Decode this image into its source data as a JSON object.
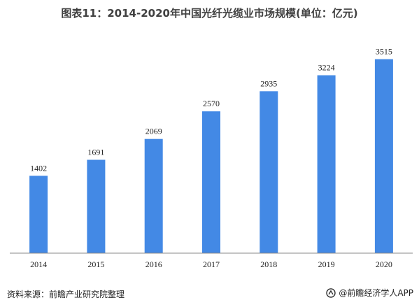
{
  "title": "图表11：2014-2020年中国光纤光缆业市场规模(单位：亿元)",
  "source": "资料来源：前瞻产业研究院整理",
  "credit": "@前瞻经济学人APP",
  "colors": {
    "bar": "#4389e5",
    "axis": "#888888",
    "label": "#222222"
  },
  "chart_data": {
    "type": "bar",
    "title": "图表11：2014-2020年中国光纤光缆业市场规模(单位：亿元)",
    "categories": [
      "2014",
      "2015",
      "2016",
      "2017",
      "2018",
      "2019",
      "2020"
    ],
    "values": [
      1402,
      1691,
      2069,
      2570,
      2935,
      3224,
      3515
    ],
    "xlabel": "",
    "ylabel": "",
    "ylim": [
      0,
      3700
    ],
    "grid": false,
    "legend": "none",
    "data_labels": true
  }
}
